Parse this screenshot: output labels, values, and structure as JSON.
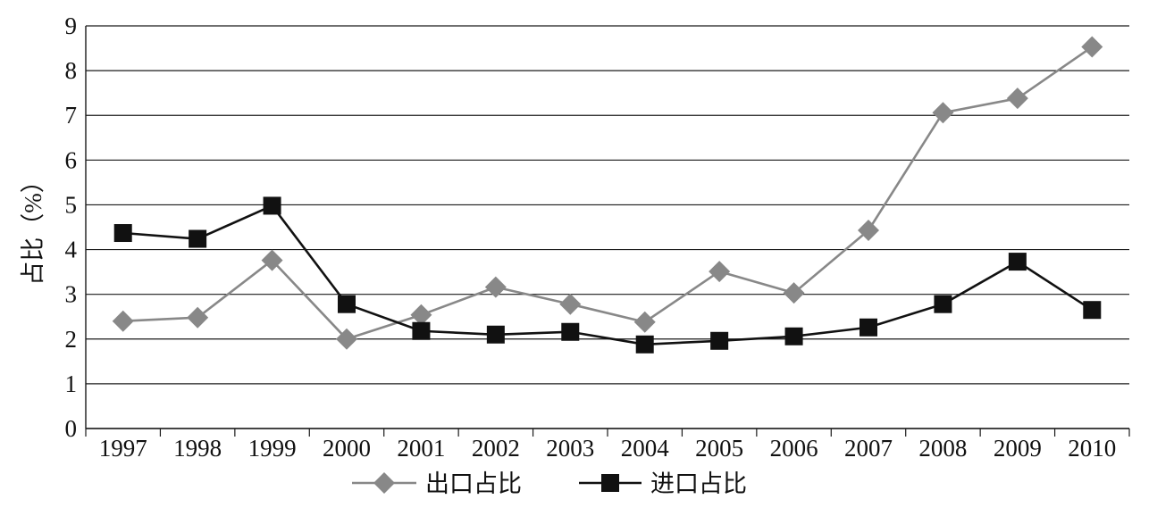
{
  "chart_data": {
    "type": "line",
    "title": "",
    "xlabel": "",
    "ylabel": "占比（%）",
    "ylim": [
      0,
      9
    ],
    "yticks": [
      0,
      1,
      2,
      3,
      4,
      5,
      6,
      7,
      8,
      9
    ],
    "grid": "horizontal",
    "legend_position": "bottom",
    "categories": [
      "1997",
      "1998",
      "1999",
      "2000",
      "2001",
      "2002",
      "2003",
      "2004",
      "2005",
      "2006",
      "2007",
      "2008",
      "2009",
      "2010"
    ],
    "series": [
      {
        "name": "出口占比",
        "marker": "diamond",
        "color": "#888888",
        "values": [
          2.4,
          2.48,
          3.76,
          2.0,
          2.54,
          3.16,
          2.78,
          2.38,
          3.51,
          3.03,
          4.43,
          7.06,
          7.38,
          8.53
        ]
      },
      {
        "name": "进口占比",
        "marker": "square",
        "color": "#111111",
        "values": [
          4.37,
          4.24,
          4.98,
          2.78,
          2.18,
          2.1,
          2.16,
          1.88,
          1.96,
          2.06,
          2.26,
          2.78,
          3.73,
          2.65
        ]
      }
    ]
  }
}
